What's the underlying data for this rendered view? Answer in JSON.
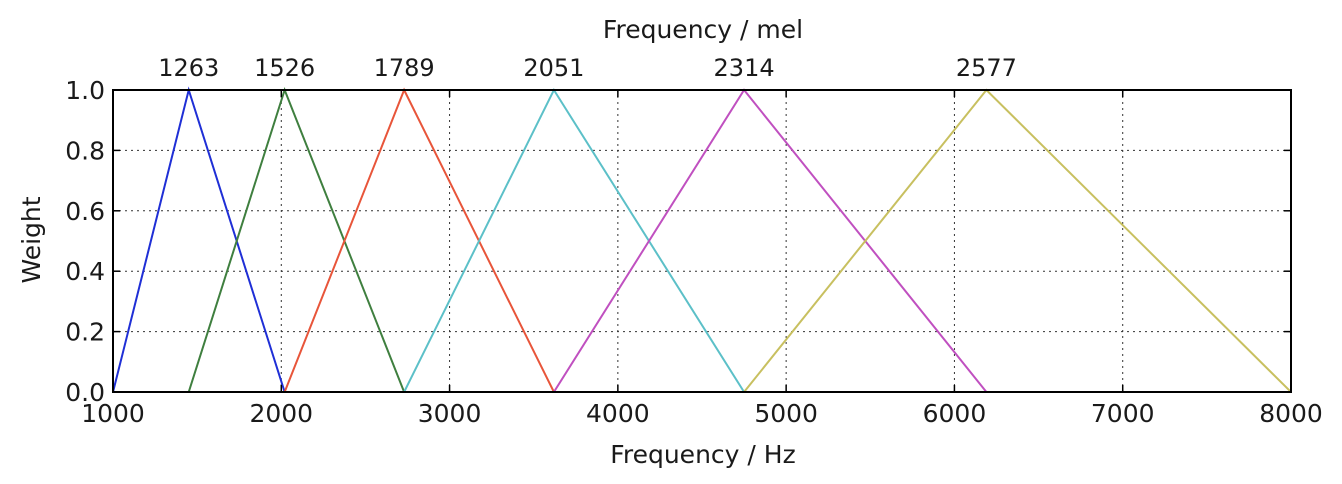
{
  "chart_data": {
    "type": "line",
    "xlabel": "Frequency / Hz",
    "ylabel": "Weight",
    "top_xlabel": "Frequency / mel",
    "xlim": [
      1000,
      8000
    ],
    "ylim": [
      0,
      1.0
    ],
    "grid": true,
    "x_ticks": [
      1000,
      2000,
      3000,
      4000,
      5000,
      6000,
      7000,
      8000
    ],
    "x_tick_labels": [
      "1000",
      "2000",
      "3000",
      "4000",
      "5000",
      "6000",
      "7000",
      "8000"
    ],
    "y_ticks": [
      0,
      0.2,
      0.4,
      0.6,
      0.8,
      1.0
    ],
    "y_tick_labels": [
      "0.0",
      "0.2",
      "0.4",
      "0.6",
      "0.8",
      "1.0"
    ],
    "top_ticks": [
      1450,
      2020,
      2730,
      3620,
      4750,
      6190
    ],
    "top_tick_labels": [
      "1263",
      "1526",
      "1789",
      "2051",
      "2314",
      "2577"
    ],
    "series": [
      {
        "color": "#1f2fd6",
        "x": [
          1000,
          1450,
          2020
        ],
        "y": [
          0,
          1,
          0
        ]
      },
      {
        "color": "#3f7f3f",
        "x": [
          1450,
          2020,
          2730
        ],
        "y": [
          0,
          1,
          0
        ]
      },
      {
        "color": "#e8553a",
        "x": [
          2020,
          2730,
          3620
        ],
        "y": [
          0,
          1,
          0
        ]
      },
      {
        "color": "#5cc0c8",
        "x": [
          2730,
          3620,
          4750
        ],
        "y": [
          0,
          1,
          0
        ]
      },
      {
        "color": "#c050c0",
        "x": [
          3620,
          4750,
          6190
        ],
        "y": [
          0,
          1,
          0
        ]
      },
      {
        "color": "#c8c060",
        "x": [
          4750,
          6190,
          8000
        ],
        "y": [
          0,
          1,
          0
        ]
      }
    ]
  }
}
